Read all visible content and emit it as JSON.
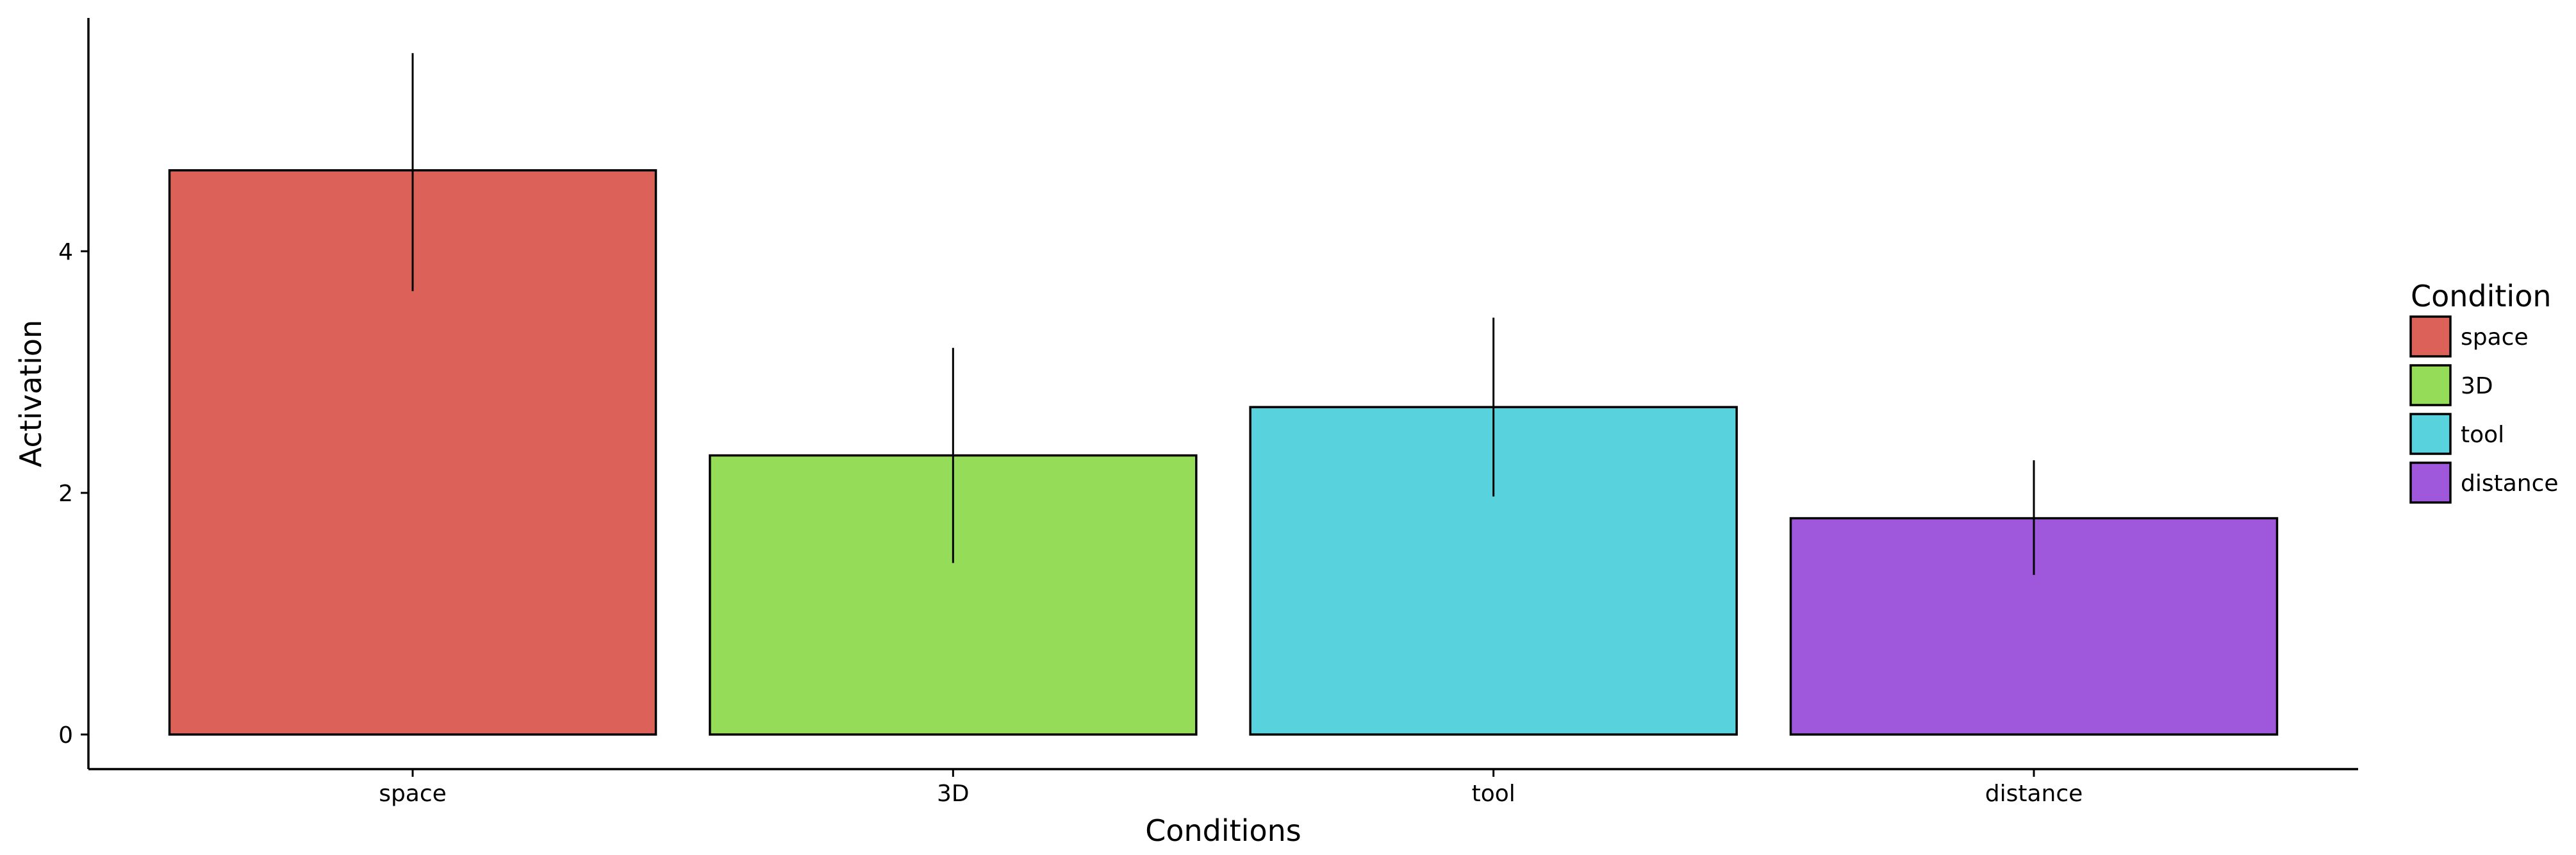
{
  "chart_data": {
    "type": "bar",
    "title": "",
    "xlabel": "Conditions",
    "ylabel": "Activation",
    "categories": [
      "space",
      "3D",
      "tool",
      "distance"
    ],
    "values": [
      4.67,
      2.31,
      2.71,
      1.79
    ],
    "error_bars": {
      "lower": [
        3.67,
        1.42,
        1.97,
        1.32
      ],
      "upper": [
        5.64,
        3.2,
        3.45,
        2.27
      ]
    },
    "colors": [
      "#DC6158",
      "#95DC58",
      "#58D2DC",
      "#9F58DC"
    ],
    "y_ticks": [
      0,
      2,
      4
    ],
    "y_tick_labels": [
      "0",
      "2",
      "4"
    ],
    "ylim": [
      -0.29,
      5.93
    ],
    "grid": false,
    "legend": {
      "title": "Condition",
      "position": "right",
      "items": [
        "space",
        "3D",
        "tool",
        "distance"
      ]
    }
  }
}
